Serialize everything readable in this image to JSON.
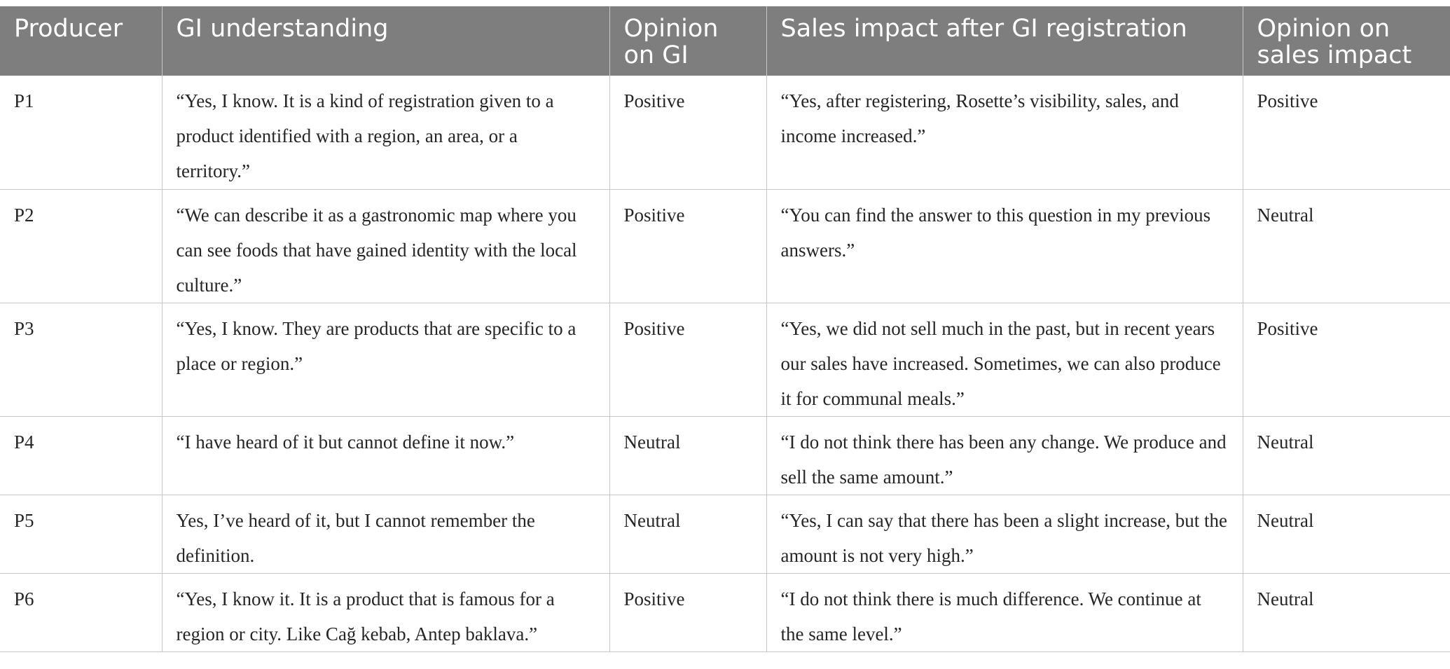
{
  "table": {
    "headers": [
      "Producer",
      "GI understanding",
      "Opinion on GI",
      "Sales impact after GI registration",
      "Opinion on sales impact"
    ],
    "rows": [
      {
        "producer": "P1",
        "gi_understanding": "“Yes, I know. It is a kind of registration given to a product identified with a region, an area, or a territory.”",
        "opinion_on_gi": "Positive",
        "sales_impact": "“Yes, after registering, Rosette’s visibility, sales, and income increased.”",
        "opinion_on_sales_impact": "Positive"
      },
      {
        "producer": "P2",
        "gi_understanding": "“We can describe it as a gastronomic map where you can see foods that have gained identity with the local culture.”",
        "opinion_on_gi": "Positive",
        "sales_impact": "“You can find the answer to this question in my previous answers.”",
        "opinion_on_sales_impact": "Neutral"
      },
      {
        "producer": "P3",
        "gi_understanding": "“Yes, I know. They are products that are specific to a place or region.”",
        "opinion_on_gi": "Positive",
        "sales_impact": "“Yes, we did not sell much in the past, but in recent years our sales have increased. Sometimes, we can also produce it for communal meals.”",
        "opinion_on_sales_impact": "Positive"
      },
      {
        "producer": "P4",
        "gi_understanding": "“I have heard of it but cannot define it now.”",
        "opinion_on_gi": "Neutral",
        "sales_impact": "“I do not think there has been any change. We produce and sell the same amount.”",
        "opinion_on_sales_impact": "Neutral"
      },
      {
        "producer": "P5",
        "gi_understanding": "Yes, I’ve heard of it, but I cannot remember the definition.",
        "opinion_on_gi": "Neutral",
        "sales_impact": "“Yes, I can say that there has been a slight increase, but the amount is not very high.”",
        "opinion_on_sales_impact": "Neutral"
      },
      {
        "producer": "P6",
        "gi_understanding": "“Yes, I know it. It is a product that is famous for a region or city. Like Cağ kebab, Antep baklava.”",
        "opinion_on_gi": "Positive",
        "sales_impact": "“I do not think there is much difference. We continue at the same level.”",
        "opinion_on_sales_impact": "Neutral"
      }
    ]
  },
  "colors": {
    "header_bg": "#7d7e7d",
    "header_text": "#ffffff",
    "body_text": "#262626",
    "rule": "#c6c6c6"
  }
}
